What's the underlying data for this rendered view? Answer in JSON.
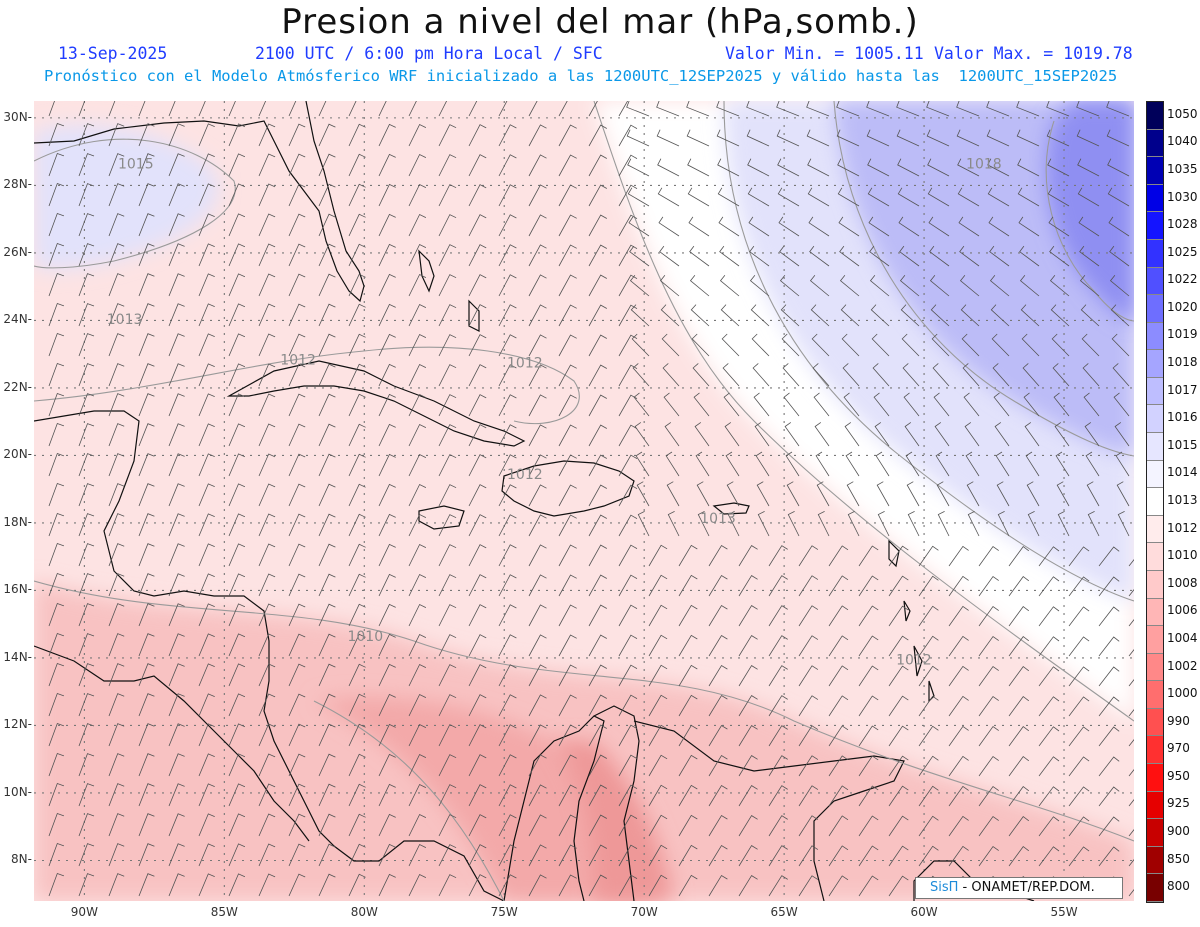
{
  "header": {
    "title": "Presion a nivel del mar (hPa,somb.)",
    "date": "13-Sep-2025",
    "time": "2100 UTC / 6:00 pm Hora Local / SFC",
    "value_min": "Valor Min. = 1005.11",
    "value_max": "Valor Max. = 1019.78",
    "forecast": "Pronóstico con el Modelo Atmósferico WRF inicializado a las 1200UTC_12SEP2025 y válido hasta las  1200UTC_15SEP2025"
  },
  "map": {
    "lat_labels": [
      "30N",
      "28N",
      "26N",
      "24N",
      "22N",
      "20N",
      "18N",
      "16N",
      "14N",
      "12N",
      "10N",
      "8N"
    ],
    "lon_labels": [
      "90W",
      "85W",
      "80W",
      "75W",
      "70W",
      "65W",
      "60W",
      "55W"
    ],
    "lat_range": [
      6.8,
      30.5
    ],
    "lon_range": [
      -91.8,
      -52.5
    ],
    "grid": true,
    "contour_labels": [
      {
        "text": "1015",
        "lon": -88.8,
        "lat": 28.5
      },
      {
        "text": "1018",
        "lon": -58.5,
        "lat": 28.5
      },
      {
        "text": "1013",
        "lon": -89.2,
        "lat": 23.9
      },
      {
        "text": "1012",
        "lon": -83.0,
        "lat": 22.7
      },
      {
        "text": "1012",
        "lon": -74.9,
        "lat": 22.6
      },
      {
        "text": "1012",
        "lon": -74.9,
        "lat": 19.3
      },
      {
        "text": "1013",
        "lon": -68.0,
        "lat": 18.0
      },
      {
        "text": "1010",
        "lon": -80.6,
        "lat": 14.5
      },
      {
        "text": "1012",
        "lon": -61.0,
        "lat": 13.8
      }
    ]
  },
  "legend": {
    "levels": [
      "1050",
      "1040",
      "1035",
      "1030",
      "1028",
      "1025",
      "1022",
      "1020",
      "1019",
      "1018",
      "1017",
      "1016",
      "1015",
      "1014",
      "1013",
      "1012",
      "1010",
      "1008",
      "1006",
      "1004",
      "1002",
      "1000",
      "990",
      "970",
      "950",
      "925",
      "900",
      "850",
      "800"
    ],
    "colors": [
      "#00005a",
      "#00008c",
      "#0000b4",
      "#0000e6",
      "#1414ff",
      "#3232ff",
      "#5050ff",
      "#6e6eff",
      "#8c8cff",
      "#a5a5ff",
      "#bebeff",
      "#d2d2ff",
      "#e6e6ff",
      "#f4f4ff",
      "#ffffff",
      "#ffecec",
      "#ffdcdc",
      "#ffcaca",
      "#ffb6b6",
      "#ffa0a0",
      "#ff8888",
      "#ff6e6e",
      "#ff5050",
      "#ff3030",
      "#ff1010",
      "#e60000",
      "#c80000",
      "#a00000",
      "#780000"
    ]
  },
  "credit": {
    "brand": "SisΠ",
    "sep": " - ",
    "org": "ONAMET/REP.DOM."
  },
  "colors": {
    "title_blue": "#1f3cff",
    "subtitle_cyan": "#0a98e8",
    "low_pressure": "#f4b6b6",
    "high_pressure": "#8c8cff"
  }
}
